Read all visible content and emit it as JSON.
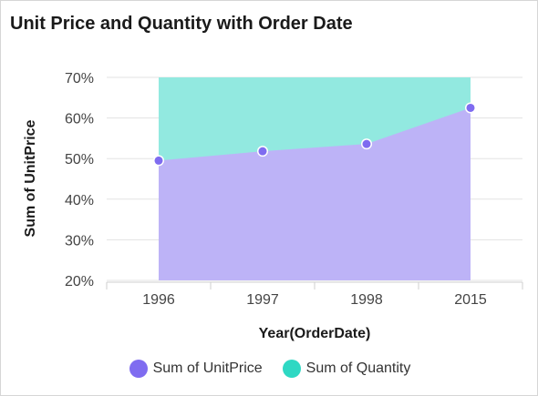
{
  "chart_data": {
    "type": "area",
    "title": "Unit Price and Quantity with Order Date",
    "xlabel": "Year(OrderDate)",
    "ylabel": "Sum of UnitPrice",
    "categories": [
      "1996",
      "1997",
      "1998",
      "2015"
    ],
    "ylim": [
      20,
      70
    ],
    "yticks": [
      "20%",
      "30%",
      "40%",
      "50%",
      "60%",
      "70%"
    ],
    "series": [
      {
        "name": "Sum of UnitPrice",
        "values": [
          49.5,
          51.8,
          53.6,
          62.5
        ],
        "color": "#7f6cf0",
        "fill": "#bdb3f7"
      },
      {
        "name": "Sum of Quantity",
        "values": [
          70,
          70,
          70,
          70
        ],
        "color": "#2ed8c3",
        "fill": "#92e9e0"
      }
    ],
    "grid": true,
    "legend_position": "bottom"
  }
}
